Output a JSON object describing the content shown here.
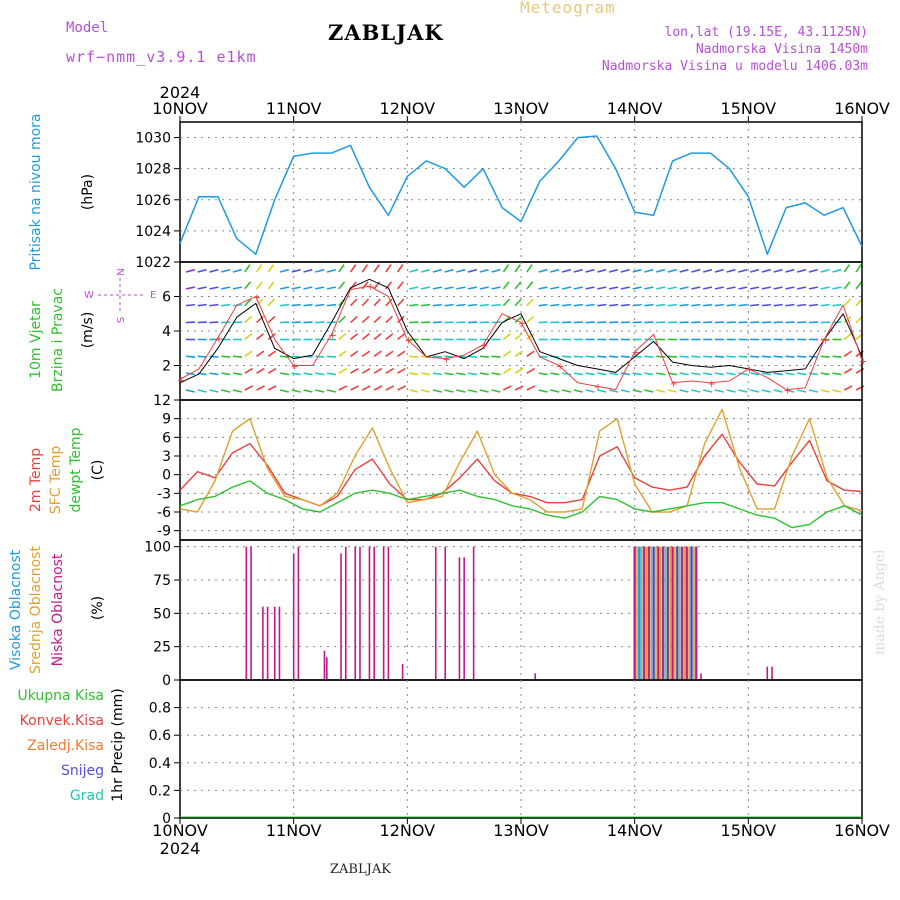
{
  "header": {
    "model_label": "Model",
    "model_name": "wrf−nmm_v3.9.1  e1km",
    "meteogram_label": "Meteogram",
    "station": "ZABLJAK",
    "coords": "lon,lat (19.15E, 43.1125N)",
    "altitude": "Nadmorska Visina 1450m",
    "model_altitude": "Nadmorska Visina u modelu 1406.03m",
    "watermark": "made by Angel",
    "footer": "ZABLJAK"
  },
  "colors": {
    "pressure": "#1e9be0",
    "temp2m": "#e8423f",
    "sfc_temp": "#e0a030",
    "dewpoint": "#2fc02f",
    "high_cloud": "#1e9be0",
    "mid_cloud": "#e0a030",
    "low_cloud": "#c0188c",
    "wind_axis_label": "#b84fd6"
  },
  "chart_data": [
    {
      "type": "line",
      "name": "pressure",
      "ylabel": "Pritisak na nivou mora",
      "unit": "(hPa)",
      "ylim": [
        1022,
        1031
      ],
      "yticks": [
        1022,
        1024,
        1026,
        1028,
        1030
      ],
      "x": [
        0,
        4,
        8,
        12,
        16,
        20,
        24,
        28,
        32,
        36,
        40,
        44,
        48,
        52,
        56,
        60,
        64,
        68,
        72,
        76,
        80,
        84,
        88,
        92,
        96,
        100,
        104,
        108,
        112,
        116,
        120,
        124,
        128,
        132,
        136,
        140,
        144
      ],
      "values": [
        1023.2,
        1026.2,
        1026.2,
        1023.5,
        1022.5,
        1026.0,
        1028.8,
        1029.0,
        1029.0,
        1029.5,
        1026.8,
        1025.0,
        1027.5,
        1028.5,
        1028.0,
        1026.8,
        1028.0,
        1025.5,
        1024.6,
        1027.2,
        1028.5,
        1030.0,
        1030.1,
        1028.0,
        1025.2,
        1025.0,
        1028.5,
        1029.0,
        1029.0,
        1028.0,
        1026.2,
        1022.5,
        1025.5,
        1025.8,
        1025.0,
        1025.5,
        1023.0
      ]
    },
    {
      "type": "line",
      "name": "wind",
      "ylabel": "10m Vjetar Brzina i Pravac",
      "unit": "(m/s)",
      "ylim": [
        0,
        8
      ],
      "yticks": [
        2,
        4,
        6
      ],
      "compass": "N S E W",
      "series": [
        {
          "values": [
            1.0,
            1.5,
            3.0,
            4.8,
            5.6,
            3.0,
            2.4,
            2.6,
            4.5,
            6.5,
            7.0,
            6.5,
            4.0,
            2.5,
            2.8,
            2.4,
            3.0,
            4.5,
            5.0,
            2.8,
            2.4,
            2.0,
            1.8,
            1.6,
            2.5,
            3.4,
            2.2,
            2.0,
            1.9,
            2.0,
            1.8,
            1.6,
            1.7,
            1.8,
            3.5,
            5.0,
            2.5
          ]
        },
        {
          "values": [
            1.2,
            1.8,
            3.6,
            5.5,
            6.0,
            3.5,
            2.0,
            2.0,
            3.8,
            6.4,
            6.6,
            6.0,
            3.5,
            2.5,
            2.4,
            2.6,
            3.2,
            5.0,
            4.5,
            2.5,
            2.0,
            1.0,
            0.8,
            0.6,
            2.8,
            3.8,
            1.0,
            1.1,
            1.0,
            1.1,
            1.8,
            1.3,
            0.6,
            0.7,
            3.5,
            5.5,
            2.3
          ]
        }
      ]
    },
    {
      "type": "line",
      "name": "temperature",
      "ylabel": "2m Temp / SFC Temp / dewpt Temp",
      "unit": "(C)",
      "ylim": [
        -10.5,
        12
      ],
      "yticks": [
        -9,
        -6,
        -3,
        0,
        3,
        6,
        9,
        12
      ],
      "series": [
        {
          "name": "2m Temp",
          "values": [
            -2.5,
            0.5,
            -0.5,
            3.5,
            5.0,
            1.5,
            -3.0,
            -4.0,
            -5.0,
            -3.5,
            0.8,
            2.5,
            -1.5,
            -4.0,
            -4.0,
            -3.0,
            -0.5,
            2.5,
            -1.0,
            -3.0,
            -3.5,
            -4.5,
            -4.5,
            -4.0,
            3.0,
            4.5,
            -0.5,
            -2.0,
            -2.5,
            -2.0,
            3.0,
            6.5,
            2.0,
            -1.5,
            -1.8,
            2.0,
            5.5,
            -1.0,
            -2.5,
            -2.7
          ]
        },
        {
          "name": "SFC Temp",
          "values": [
            -5.5,
            -6.0,
            -1.0,
            7.0,
            9.0,
            1.0,
            -3.5,
            -4.0,
            -5.0,
            -3.0,
            3.0,
            7.5,
            1.0,
            -4.5,
            -4.0,
            -3.5,
            2.0,
            7.0,
            0.0,
            -3.0,
            -4.0,
            -6.0,
            -6.0,
            -5.5,
            7.0,
            9.0,
            -1.5,
            -6.0,
            -6.0,
            -5.0,
            5.0,
            10.5,
            1.0,
            -5.5,
            -5.5,
            3.0,
            9.0,
            -0.5,
            -5.0,
            -5.8
          ]
        },
        {
          "name": "dewpt Temp",
          "values": [
            -5.0,
            -4.0,
            -3.5,
            -2.0,
            -1.0,
            -3.0,
            -4.0,
            -5.5,
            -6.0,
            -4.5,
            -3.0,
            -2.5,
            -3.0,
            -4.0,
            -3.5,
            -3.0,
            -2.5,
            -3.5,
            -4.0,
            -5.0,
            -5.5,
            -6.5,
            -7.0,
            -6.0,
            -3.5,
            -4.0,
            -5.5,
            -6.0,
            -5.5,
            -5.0,
            -4.5,
            -4.5,
            -5.5,
            -6.5,
            -7.0,
            -8.5,
            -8.0,
            -6.0,
            -5.0,
            -6.5
          ]
        }
      ]
    },
    {
      "type": "bar",
      "name": "cloud",
      "ylabel": "Visoka Oblacnost / Srednja Oblacnost / Niska Oblacnost",
      "unit": "(%)",
      "ylim": [
        0,
        105
      ],
      "yticks": [
        0,
        25,
        50,
        75,
        100
      ],
      "series": [
        {
          "name": "Niska Oblacnost",
          "points": [
            [
              14,
              100
            ],
            [
              15,
              100
            ],
            [
              17.5,
              55
            ],
            [
              18.5,
              55
            ],
            [
              20,
              55
            ],
            [
              21,
              55
            ],
            [
              24,
              95
            ],
            [
              25,
              100
            ],
            [
              30.5,
              22
            ],
            [
              31,
              17
            ],
            [
              34,
              95
            ],
            [
              35,
              100
            ],
            [
              37,
              100
            ],
            [
              38,
              100
            ],
            [
              40,
              100
            ],
            [
              41,
              100
            ],
            [
              43,
              100
            ],
            [
              44,
              100
            ],
            [
              47,
              12
            ],
            [
              54,
              100
            ],
            [
              56,
              100
            ],
            [
              59,
              92
            ],
            [
              60,
              92
            ],
            [
              62,
              100
            ],
            [
              75,
              5
            ],
            [
              96,
              100
            ],
            [
              98,
              100
            ],
            [
              99,
              100
            ],
            [
              100,
              100
            ],
            [
              101,
              100
            ],
            [
              102,
              100
            ],
            [
              103,
              100
            ],
            [
              104,
              100
            ],
            [
              105,
              100
            ],
            [
              106,
              100
            ],
            [
              107,
              100
            ],
            [
              108,
              100
            ],
            [
              109,
              100
            ],
            [
              110,
              5
            ],
            [
              124,
              10
            ],
            [
              125,
              10
            ]
          ]
        },
        {
          "name": "Srednja Oblacnost",
          "points": [
            [
              96.5,
              100
            ],
            [
              97.5,
              100
            ],
            [
              98.5,
              100
            ],
            [
              99.5,
              100
            ],
            [
              100.5,
              100
            ],
            [
              101.5,
              100
            ],
            [
              102.5,
              100
            ],
            [
              103.5,
              100
            ],
            [
              104.5,
              100
            ],
            [
              105.5,
              100
            ],
            [
              106.5,
              100
            ],
            [
              107.5,
              100
            ],
            [
              108.5,
              100
            ]
          ]
        },
        {
          "name": "Visoka Oblacnost",
          "points": [
            [
              96,
              100
            ],
            [
              97,
              100
            ],
            [
              98,
              100
            ],
            [
              99,
              100
            ],
            [
              100,
              100
            ],
            [
              101,
              100
            ],
            [
              102,
              100
            ],
            [
              103,
              100
            ],
            [
              104,
              100
            ],
            [
              105,
              100
            ],
            [
              106,
              100
            ],
            [
              107,
              100
            ],
            [
              108,
              100
            ],
            [
              109,
              100
            ]
          ]
        }
      ]
    },
    {
      "type": "line",
      "name": "precipitation",
      "ylabel": "1hr Precip",
      "unit": "(mm)",
      "ylim": [
        0,
        1.0
      ],
      "yticks": [
        0,
        0.2,
        0.4,
        0.6,
        0.8
      ],
      "legend": [
        "Ukupna  Kisa",
        "Konvek.Kisa",
        "Zaledj.Kisa",
        "Snijeg",
        "Grad"
      ],
      "values": [
        0,
        0
      ]
    }
  ],
  "x_axis": {
    "year": "2024",
    "labels": [
      "10NOV",
      "11NOV",
      "12NOV",
      "13NOV",
      "14NOV",
      "15NOV",
      "16NOV"
    ]
  }
}
